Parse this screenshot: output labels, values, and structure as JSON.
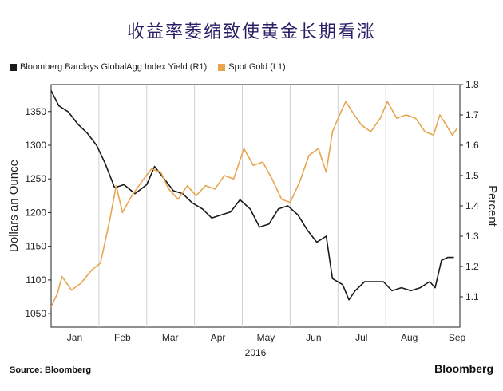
{
  "title": "收益率萎缩致使黄金长期看涨",
  "source": "Source: Bloomberg",
  "brand": "Bloomberg",
  "chart_data": {
    "type": "line",
    "year_label": "2016",
    "x_months": [
      "Jan",
      "Feb",
      "Mar",
      "Apr",
      "May",
      "Jun",
      "Jul",
      "Aug",
      "Sep"
    ],
    "left_axis": {
      "label": "Dollars an Ounce",
      "min": 1030,
      "max": 1390,
      "ticks": [
        1050,
        1100,
        1150,
        1200,
        1250,
        1300,
        1350
      ]
    },
    "right_axis": {
      "label": "Percent",
      "min": 1.0,
      "max": 1.8,
      "ticks": [
        1.1,
        1.2,
        1.3,
        1.4,
        1.5,
        1.6,
        1.7,
        1.8
      ]
    },
    "series": [
      {
        "name": "Bloomberg Barclays GlobalAgg Index Yield (R1)",
        "axis": "right",
        "color": "#1a1a1a",
        "points": [
          [
            "Jan 01",
            1.78
          ],
          [
            "Jan 06",
            1.73
          ],
          [
            "Jan 12",
            1.71
          ],
          [
            "Jan 18",
            1.67
          ],
          [
            "Jan 24",
            1.64
          ],
          [
            "Jan 30",
            1.6
          ],
          [
            "Feb 05",
            1.54
          ],
          [
            "Feb 11",
            1.46
          ],
          [
            "Feb 17",
            1.47
          ],
          [
            "Feb 24",
            1.44
          ],
          [
            "Mar 01",
            1.47
          ],
          [
            "Mar 06",
            1.53
          ],
          [
            "Mar 12",
            1.49
          ],
          [
            "Mar 18",
            1.45
          ],
          [
            "Mar 24",
            1.44
          ],
          [
            "Mar 30",
            1.41
          ],
          [
            "Apr 06",
            1.39
          ],
          [
            "Apr 12",
            1.36
          ],
          [
            "Apr 18",
            1.37
          ],
          [
            "Apr 24",
            1.38
          ],
          [
            "Apr 30",
            1.42
          ],
          [
            "May 06",
            1.39
          ],
          [
            "May 12",
            1.33
          ],
          [
            "May 18",
            1.34
          ],
          [
            "May 24",
            1.39
          ],
          [
            "May 30",
            1.4
          ],
          [
            "Jun 06",
            1.37
          ],
          [
            "Jun 12",
            1.32
          ],
          [
            "Jun 18",
            1.28
          ],
          [
            "Jun 24",
            1.3
          ],
          [
            "Jun 28",
            1.16
          ],
          [
            "Jul 04",
            1.14
          ],
          [
            "Jul 08",
            1.09
          ],
          [
            "Jul 12",
            1.12
          ],
          [
            "Jul 18",
            1.15
          ],
          [
            "Jul 24",
            1.15
          ],
          [
            "Jul 30",
            1.15
          ],
          [
            "Aug 05",
            1.12
          ],
          [
            "Aug 11",
            1.13
          ],
          [
            "Aug 17",
            1.12
          ],
          [
            "Aug 23",
            1.13
          ],
          [
            "Aug 29",
            1.15
          ],
          [
            "Sep 02",
            1.13
          ],
          [
            "Sep 06",
            1.22
          ],
          [
            "Sep 10",
            1.23
          ],
          [
            "Sep 14",
            1.23
          ]
        ]
      },
      {
        "name": "Spot Gold (L1)",
        "axis": "left",
        "color": "#e8a550",
        "points": [
          [
            "Jan 01",
            1060
          ],
          [
            "Jan 05",
            1080
          ],
          [
            "Jan 08",
            1105
          ],
          [
            "Jan 14",
            1085
          ],
          [
            "Jan 20",
            1095
          ],
          [
            "Jan 27",
            1115
          ],
          [
            "Feb 02",
            1125
          ],
          [
            "Feb 08",
            1190
          ],
          [
            "Feb 12",
            1240
          ],
          [
            "Feb 16",
            1200
          ],
          [
            "Feb 22",
            1225
          ],
          [
            "Feb 28",
            1245
          ],
          [
            "Mar 04",
            1265
          ],
          [
            "Mar 10",
            1260
          ],
          [
            "Mar 15",
            1235
          ],
          [
            "Mar 21",
            1220
          ],
          [
            "Mar 27",
            1240
          ],
          [
            "Apr 02",
            1225
          ],
          [
            "Apr 08",
            1240
          ],
          [
            "Apr 14",
            1235
          ],
          [
            "Apr 20",
            1255
          ],
          [
            "Apr 26",
            1250
          ],
          [
            "May 02",
            1295
          ],
          [
            "May 08",
            1270
          ],
          [
            "May 14",
            1275
          ],
          [
            "May 20",
            1250
          ],
          [
            "May 26",
            1220
          ],
          [
            "Jun 01",
            1215
          ],
          [
            "Jun 07",
            1245
          ],
          [
            "Jun 13",
            1285
          ],
          [
            "Jun 19",
            1295
          ],
          [
            "Jun 24",
            1260
          ],
          [
            "Jun 28",
            1320
          ],
          [
            "Jul 02",
            1345
          ],
          [
            "Jul 06",
            1365
          ],
          [
            "Jul 10",
            1350
          ],
          [
            "Jul 16",
            1330
          ],
          [
            "Jul 22",
            1320
          ],
          [
            "Jul 28",
            1340
          ],
          [
            "Aug 02",
            1365
          ],
          [
            "Aug 08",
            1340
          ],
          [
            "Aug 14",
            1345
          ],
          [
            "Aug 20",
            1340
          ],
          [
            "Aug 26",
            1320
          ],
          [
            "Sep 01",
            1315
          ],
          [
            "Sep 05",
            1345
          ],
          [
            "Sep 09",
            1330
          ],
          [
            "Sep 13",
            1315
          ],
          [
            "Sep 16",
            1325
          ]
        ]
      }
    ],
    "grid": "vertical",
    "legend_position": "top-left"
  }
}
